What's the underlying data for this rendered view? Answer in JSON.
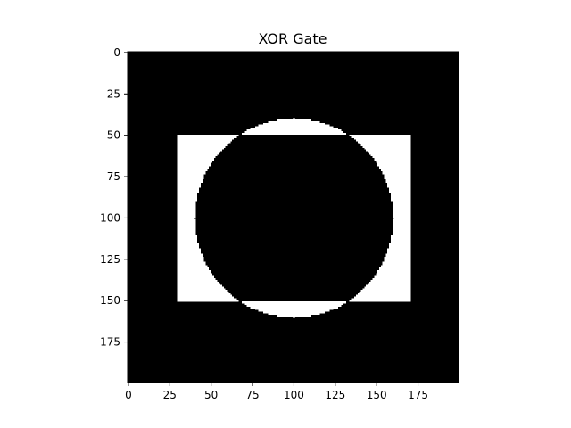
{
  "chart_data": {
    "type": "heatmap",
    "title": "XOR Gate",
    "xlabel": "",
    "ylabel": "",
    "image_size": [
      200,
      200
    ],
    "xlim": [
      0,
      200
    ],
    "ylim": [
      200,
      0
    ],
    "x_ticks": [
      0,
      25,
      50,
      75,
      100,
      125,
      150,
      175
    ],
    "y_ticks": [
      0,
      25,
      50,
      75,
      100,
      125,
      150,
      175
    ],
    "colormap": "gray",
    "value_colors": {
      "0": "#000000",
      "1": "#ffffff"
    },
    "rectangle": {
      "x_min": 30,
      "x_max": 170,
      "y_min": 50,
      "y_max": 150
    },
    "circle": {
      "cx": 100,
      "cy": 100,
      "r": 60
    },
    "operation": "XOR"
  }
}
